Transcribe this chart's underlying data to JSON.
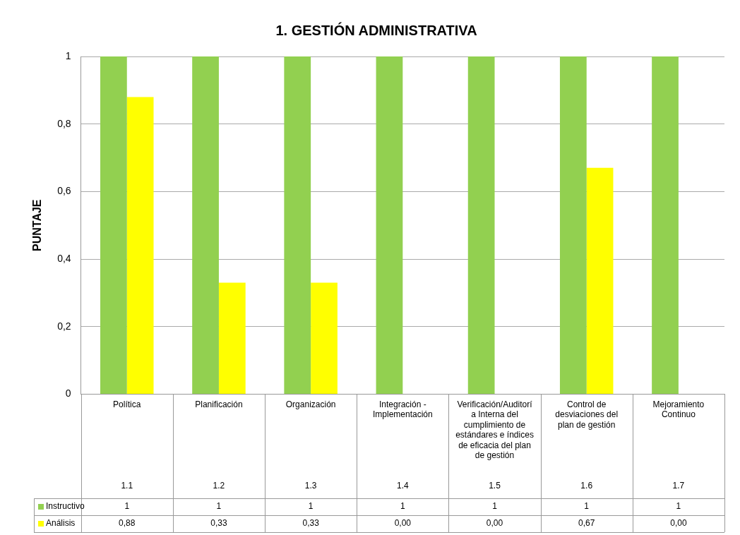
{
  "chart_data": {
    "type": "bar",
    "title": "1. GESTIÓN ADMINISTRATIVA",
    "ylabel": "PUNTAJE",
    "categories": [
      "Política\n1.1",
      "Planificación\n1.2",
      "Organización\n1.3",
      "Integración - Implementación\n1.4",
      "Verificación/Auditoría Interna del cumplimiento de estándares e índices de eficacia del plan de gestión\n1.5",
      "Control de desviaciones del plan de gestión\n1.6",
      "Mejoramiento Continuo\n1.7"
    ],
    "series": [
      {
        "name": "Instructivo",
        "color": "#92d050",
        "values": [
          1,
          1,
          1,
          1,
          1,
          1,
          1
        ],
        "value_labels": [
          "1",
          "1",
          "1",
          "1",
          "1",
          "1",
          "1"
        ]
      },
      {
        "name": "Análisis",
        "color": "#ffff00",
        "values": [
          0.88,
          0.33,
          0.33,
          0,
          0,
          0.67,
          0
        ],
        "value_labels": [
          "0,88",
          "0,33",
          "0,33",
          "0,00",
          "0,00",
          "0,67",
          "0,00"
        ]
      }
    ],
    "ylim": [
      0,
      1
    ],
    "yticks": [
      0,
      {
        "value": 0.2,
        "label": "0,2"
      },
      {
        "value": 0.4,
        "label": "0,4"
      },
      {
        "value": 0.6,
        "label": "0,6"
      },
      {
        "value": 0.8,
        "label": "0,8"
      },
      1
    ],
    "grid": "y",
    "legend": "bottom"
  }
}
